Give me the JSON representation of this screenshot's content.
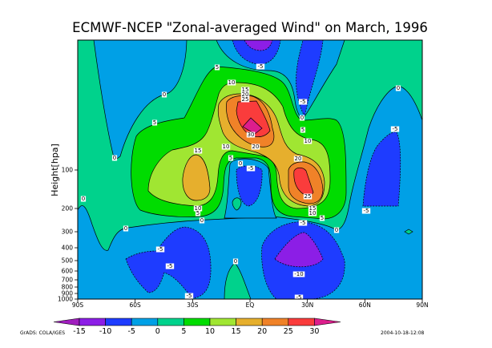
{
  "chart_data": {
    "type": "heatmap",
    "subtype": "filled contour",
    "title": "ECMWF-NCEP \"Zonal-averaged Wind\" on March, 1996",
    "xlabel": "",
    "ylabel": "Height[hpa]",
    "x_ticks": [
      "90S",
      "60S",
      "30S",
      "EQ",
      "30N",
      "60N",
      "90N"
    ],
    "y_ticks": [
      "100",
      "200",
      "300",
      "400",
      "500",
      "600",
      "700",
      "800",
      "900",
      "1000"
    ],
    "xlim": [
      -90,
      90
    ],
    "ylim_hpa": [
      1000,
      10
    ],
    "levels": [
      -15,
      -10,
      -5,
      0,
      5,
      10,
      15,
      20,
      25,
      30
    ],
    "level_labels": [
      "-15",
      "-10",
      "-5",
      "0",
      "5",
      "10",
      "15",
      "20",
      "25",
      "30"
    ],
    "colors": [
      "#a01ebe",
      "#8c1ee6",
      "#1e3cff",
      "#00a0e6",
      "#00d28c",
      "#00dc00",
      "#a0e632",
      "#e6af2d",
      "#f08228",
      "#fa3c3c",
      "#dc1e8c"
    ],
    "contour_labels": [
      "-5",
      "5",
      "10",
      "15",
      "20",
      "25",
      "0",
      "-5",
      "0",
      "5",
      "10",
      "5",
      "30",
      "20",
      "15",
      "10",
      "5",
      "0",
      "-5",
      "20",
      "25",
      "0",
      "0",
      "-5",
      "0",
      "10",
      "5",
      "0",
      "15",
      "10",
      "5",
      "-5",
      "0",
      "-5",
      "0",
      "-5",
      "-5",
      "0",
      "-10",
      "-5",
      "-5"
    ],
    "features": {
      "max_jet_label": "30",
      "min_label": "-10"
    }
  },
  "footer": {
    "left": "GrADS: COLA/IGES",
    "right": "2004-10-18-12:08"
  }
}
